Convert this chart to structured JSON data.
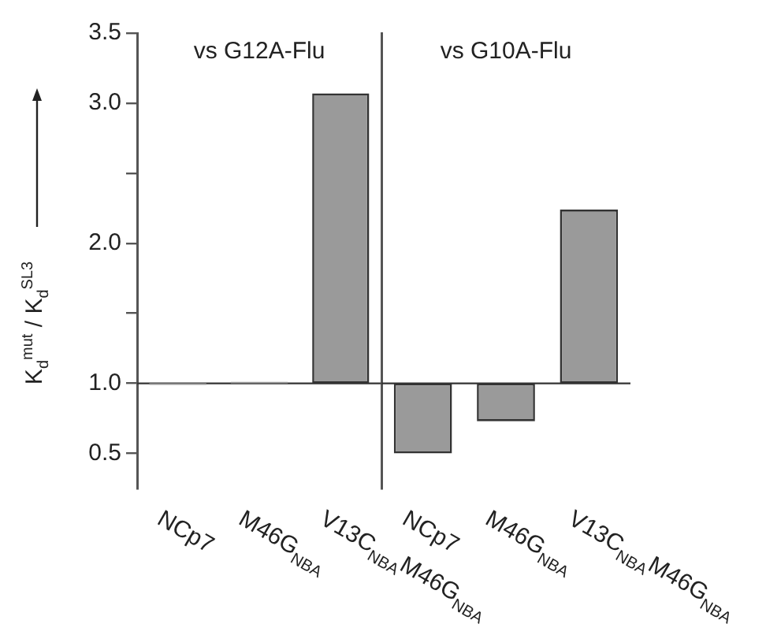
{
  "chart_data": [
    {
      "type": "bar",
      "title": "vs G12A-Flu",
      "ylabel": "K$_{d}$$^{mut}$ / K$_{d}$$^{SL3}$",
      "categories": [
        "NCp7",
        "M46G$_{NBA}$",
        "V13C$_{NBA}$M46G$_{NBA}$"
      ],
      "base": [
        1,
        1,
        1
      ],
      "values": [
        -0.01,
        0.01,
        2.07
      ],
      "color": "#9a9a9a",
      "ylim": [
        0.25,
        3.5
      ],
      "yticks": [
        {
          "value": 0.5,
          "label": "0.5"
        },
        {
          "value": 1,
          "label": "1.0"
        },
        {
          "value": 1.5,
          "label": null
        },
        {
          "value": 2,
          "label": "2.0"
        },
        {
          "value": 2.5,
          "label": null
        },
        {
          "value": 3,
          "label": "3.0"
        },
        {
          "value": 3.5,
          "label": "3.5"
        }
      ],
      "ref_lines": [
        {
          "axis": "y",
          "value": 1
        }
      ],
      "grid": false,
      "legend": false
    },
    {
      "type": "bar",
      "title": "vs G10A-Flu",
      "categories": [
        "NCp7",
        "M46G$_{NBA}$",
        "V13C$_{NBA}$M46G$_{NBA}$"
      ],
      "base": [
        1,
        1,
        1
      ],
      "values": [
        -0.5,
        -0.27,
        1.24
      ],
      "color": "#9a9a9a",
      "ylim": [
        0.25,
        3.5
      ],
      "tick_labels": "x",
      "ref_lines": [
        {
          "axis": "y",
          "value": 1
        }
      ],
      "grid": false,
      "legend": false
    }
  ]
}
